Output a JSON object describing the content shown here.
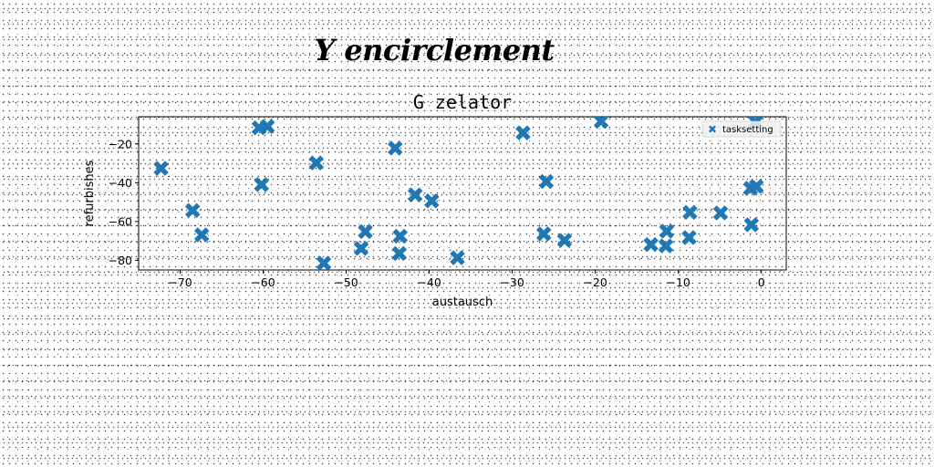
{
  "suptitle": "Y encirclement",
  "chart_data": {
    "type": "scatter",
    "title": "G zelator",
    "xlabel": "austausch",
    "ylabel": "refurbishes",
    "xlim": [
      -75,
      3
    ],
    "ylim": [
      -85,
      -6
    ],
    "xticks": [
      -70,
      -60,
      -50,
      -40,
      -30,
      -20,
      -10,
      0
    ],
    "yticks": [
      -20,
      -40,
      -60,
      -80
    ],
    "grid": false,
    "legend_placement": "top-right",
    "marker_color": "#1f77b4",
    "series": [
      {
        "name": "tasksetting",
        "points": [
          [
            -72.3,
            -32.6
          ],
          [
            -68.5,
            -54.3
          ],
          [
            -67.4,
            -66.9
          ],
          [
            -60.5,
            -11.7
          ],
          [
            -59.5,
            -11.0
          ],
          [
            -60.2,
            -41.0
          ],
          [
            -53.6,
            -29.8
          ],
          [
            -52.7,
            -81.5
          ],
          [
            -48.2,
            -73.9
          ],
          [
            -47.7,
            -65.2
          ],
          [
            -44.1,
            -22.2
          ],
          [
            -43.5,
            -67.6
          ],
          [
            -43.6,
            -76.5
          ],
          [
            -41.7,
            -46.3
          ],
          [
            -39.7,
            -49.4
          ],
          [
            -36.6,
            -78.7
          ],
          [
            -28.7,
            -14.3
          ],
          [
            -25.9,
            -39.4
          ],
          [
            -26.2,
            -66.4
          ],
          [
            -23.7,
            -69.7
          ],
          [
            -19.3,
            -8.4
          ],
          [
            -13.3,
            -71.9
          ],
          [
            -11.5,
            -72.6
          ],
          [
            -11.4,
            -65.0
          ],
          [
            -8.6,
            -55.3
          ],
          [
            -8.7,
            -68.3
          ],
          [
            -4.9,
            -55.6
          ],
          [
            -1.3,
            -42.9
          ],
          [
            -0.6,
            -41.9
          ],
          [
            -1.2,
            -61.7
          ],
          [
            -0.7,
            -8.7
          ]
        ]
      }
    ]
  }
}
